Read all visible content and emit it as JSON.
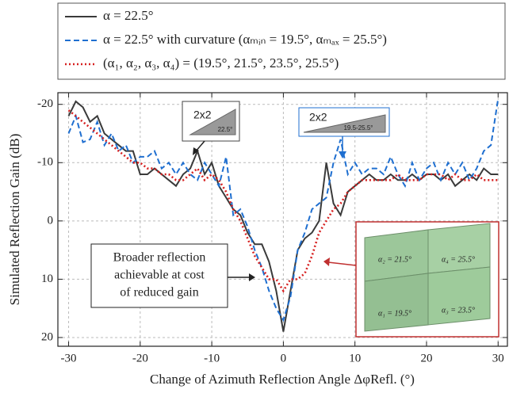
{
  "chart_data": {
    "type": "line",
    "xlabel": "Change of Azimuth Reflection Angle ΔφRefl. (°)",
    "ylabel": "Simulated Reflection Gain (dB)",
    "x": [
      -30,
      -29,
      -28,
      -27,
      -26,
      -25,
      -24,
      -23,
      -22,
      -21,
      -20,
      -19,
      -18,
      -17,
      -16,
      -15,
      -14,
      -13,
      -12,
      -11,
      -10,
      -9,
      -8,
      -7,
      -6,
      -5,
      -4,
      -3,
      -2,
      -1,
      0,
      1,
      2,
      3,
      4,
      5,
      6,
      7,
      8,
      9,
      10,
      11,
      12,
      13,
      14,
      15,
      16,
      17,
      18,
      19,
      20,
      21,
      22,
      23,
      24,
      25,
      26,
      27,
      28,
      29,
      30
    ],
    "series": [
      {
        "name": "α = 22.5°",
        "color": "#3a3a3a",
        "style": "solid",
        "values": [
          -18,
          -20.5,
          -19.5,
          -17,
          -18,
          -15,
          -14,
          -13,
          -12,
          -12,
          -8,
          -8,
          -9,
          -8,
          -7,
          -6,
          -8,
          -9,
          -12,
          -8,
          -10,
          -6,
          -4,
          -2,
          -1,
          2,
          4,
          4,
          7,
          12,
          19,
          12,
          5,
          3,
          2,
          0,
          -10,
          -3,
          -1,
          -5,
          -6,
          -7,
          -8,
          -7,
          -7,
          -8,
          -7,
          -7,
          -8,
          -7,
          -8,
          -8,
          -7,
          -8,
          -6,
          -7,
          -8,
          -7,
          -9,
          -8,
          -8
        ]
      },
      {
        "name": "α = 22.5° with curvature (αₘᵢₙ = 19.5°, αₘₐₓ = 25.5°)",
        "color": "#1f6fd0",
        "style": "dashed",
        "values": [
          -15,
          -18,
          -13.5,
          -14,
          -17,
          -13,
          -15,
          -12,
          -13,
          -10,
          -11,
          -11,
          -12,
          -9,
          -10,
          -8,
          -10,
          -8,
          -7,
          -10,
          -8,
          -6,
          -11,
          -1,
          -2,
          1,
          5,
          8,
          12,
          15,
          17,
          13,
          5,
          2,
          -2,
          -3,
          -4,
          -10,
          -14,
          -8,
          -10,
          -8,
          -9,
          -9,
          -8,
          -11,
          -8,
          -6,
          -10,
          -7,
          -9,
          -10,
          -7,
          -10,
          -8,
          -10,
          -7,
          -9,
          -12,
          -13,
          -21
        ]
      },
      {
        "name": "(α₁, α₂, α₃, α₄) = (19.5°, 21.5°, 23.5°, 25.5°)",
        "color": "#d62020",
        "style": "dotted",
        "values": [
          -19,
          -18,
          -17,
          -16,
          -15,
          -14,
          -13,
          -12,
          -11,
          -10,
          -10,
          -9,
          -9,
          -8,
          -8,
          -7,
          -7,
          -8,
          -9,
          -7,
          -8,
          -7,
          -5,
          -2,
          0,
          3,
          6,
          8,
          10,
          10,
          12,
          10,
          10,
          9,
          6,
          2,
          0,
          -2,
          -3,
          -5,
          -6,
          -7,
          -7,
          -7,
          -7,
          -7,
          -8,
          -7,
          -7,
          -7,
          -8,
          -8,
          -8,
          -7,
          -8,
          -7,
          -7,
          -8,
          -7,
          -7,
          -7
        ]
      }
    ],
    "xlim": [
      -31.5,
      31.3
    ],
    "xticks": [
      -30,
      -20,
      -10,
      0,
      10,
      20,
      30
    ],
    "ylim": [
      -22,
      21.5
    ],
    "yticks": [
      -20,
      -10,
      0,
      10,
      20
    ],
    "y_inverted": true,
    "grid": true,
    "annotation": [
      "Broader reflection",
      "achievable at cost",
      "of reduced gain"
    ],
    "inset_left": {
      "title": "2x2",
      "angle": "22.5°"
    },
    "inset_right": {
      "title": "2x2",
      "angle": "19.5-25.5°"
    },
    "photo_labels": [
      "α₂ = 21.5°",
      "α₄ = 25.5°",
      "α₁ = 19.5°",
      "α₃ = 23.5°"
    ]
  }
}
